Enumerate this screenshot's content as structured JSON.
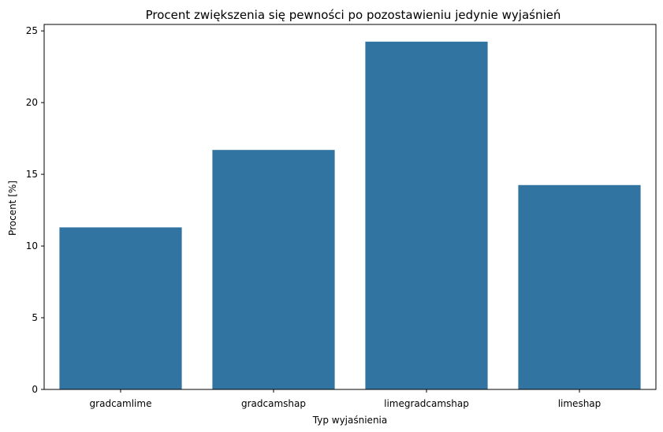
{
  "chart_data": {
    "type": "bar",
    "title": "Procent zwiększenia się pewności po pozostawieniu jedynie wyjaśnień",
    "xlabel": "Typ wyjaśnienia",
    "ylabel": "Procent [%]",
    "categories": [
      "gradcamlime",
      "gradcamshap",
      "limegradcamshap",
      "limeshap"
    ],
    "values": [
      11.3,
      16.7,
      24.25,
      14.25
    ],
    "ylim": [
      0,
      25.45
    ],
    "yticks": [
      0,
      5,
      10,
      15,
      20,
      25
    ],
    "bar_color": "#3274a1",
    "grid": false
  }
}
